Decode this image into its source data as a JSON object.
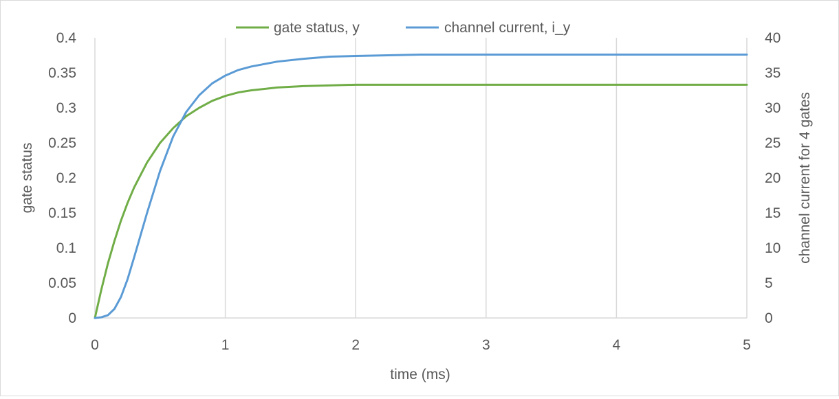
{
  "chart_data": {
    "type": "line",
    "title": "",
    "xlabel": "time (ms)",
    "ylabel": "gate status",
    "y2label": "channel current for 4 gates",
    "xlim": [
      0,
      5
    ],
    "ylim": [
      0,
      0.4
    ],
    "y2lim": [
      0,
      40
    ],
    "x_ticks": [
      "0",
      "1",
      "2",
      "3",
      "4",
      "5"
    ],
    "y_ticks": [
      "0",
      "0.05",
      "0.1",
      "0.15",
      "0.2",
      "0.25",
      "0.3",
      "0.35",
      "0.4"
    ],
    "y2_ticks": [
      "0",
      "5",
      "10",
      "15",
      "20",
      "25",
      "30",
      "35",
      "40"
    ],
    "grid": "vertical",
    "legend_position": "top",
    "x": [
      0,
      0.05,
      0.1,
      0.15,
      0.2,
      0.25,
      0.3,
      0.4,
      0.5,
      0.6,
      0.7,
      0.8,
      0.9,
      1.0,
      1.1,
      1.2,
      1.4,
      1.6,
      1.8,
      2.0,
      2.5,
      3.0,
      3.5,
      4.0,
      4.5,
      5.0
    ],
    "series": [
      {
        "name": "gate status, y",
        "axis": "left",
        "color": "#70ad47",
        "values": [
          0,
          0.041,
          0.078,
          0.11,
          0.139,
          0.164,
          0.186,
          0.222,
          0.25,
          0.271,
          0.288,
          0.3,
          0.31,
          0.317,
          0.322,
          0.325,
          0.329,
          0.331,
          0.332,
          0.333,
          0.333,
          0.333,
          0.333,
          0.333,
          0.333,
          0.333
        ]
      },
      {
        "name": "channel current, i_y",
        "axis": "right",
        "color": "#5b9bd5",
        "values": [
          0,
          0.1,
          0.4,
          1.3,
          3.0,
          5.5,
          8.6,
          15.0,
          21.0,
          25.9,
          29.4,
          31.8,
          33.5,
          34.6,
          35.4,
          35.9,
          36.6,
          37.0,
          37.3,
          37.4,
          37.6,
          37.6,
          37.6,
          37.6,
          37.6,
          37.6
        ]
      }
    ]
  }
}
